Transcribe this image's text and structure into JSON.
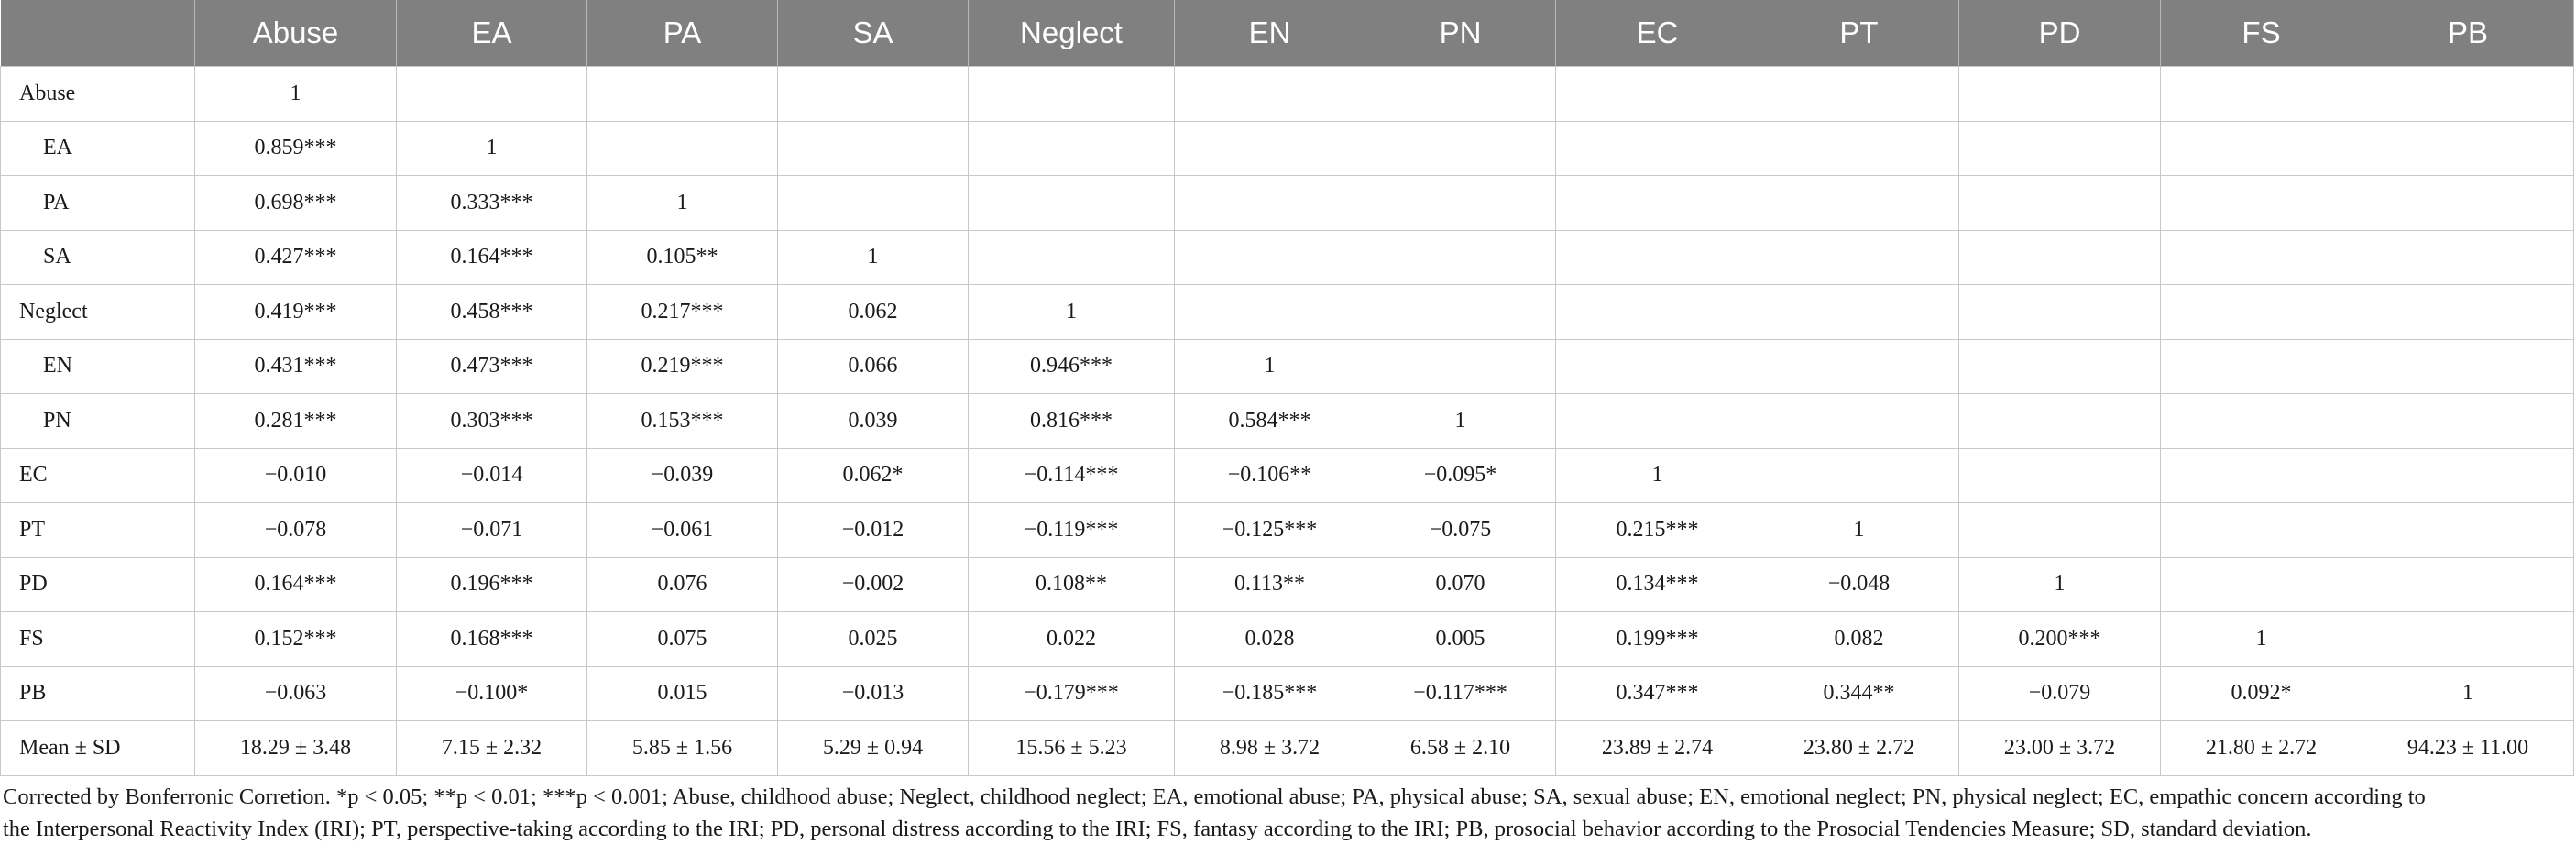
{
  "table": {
    "header": [
      "",
      "Abuse",
      "EA",
      "PA",
      "SA",
      "Neglect",
      "EN",
      "PN",
      "EC",
      "PT",
      "PD",
      "FS",
      "PB"
    ],
    "rows": [
      {
        "label": "Abuse",
        "indent": false,
        "cells": [
          "1",
          "",
          "",
          "",
          "",
          "",
          "",
          "",
          "",
          "",
          "",
          ""
        ]
      },
      {
        "label": "EA",
        "indent": true,
        "cells": [
          "0.859***",
          "1",
          "",
          "",
          "",
          "",
          "",
          "",
          "",
          "",
          "",
          ""
        ]
      },
      {
        "label": "PA",
        "indent": true,
        "cells": [
          "0.698***",
          "0.333***",
          "1",
          "",
          "",
          "",
          "",
          "",
          "",
          "",
          "",
          ""
        ]
      },
      {
        "label": "SA",
        "indent": true,
        "cells": [
          "0.427***",
          "0.164***",
          "0.105**",
          "1",
          "",
          "",
          "",
          "",
          "",
          "",
          "",
          ""
        ]
      },
      {
        "label": "Neglect",
        "indent": false,
        "cells": [
          "0.419***",
          "0.458***",
          "0.217***",
          "0.062",
          "1",
          "",
          "",
          "",
          "",
          "",
          "",
          ""
        ]
      },
      {
        "label": "EN",
        "indent": true,
        "cells": [
          "0.431***",
          "0.473***",
          "0.219***",
          "0.066",
          "0.946***",
          "1",
          "",
          "",
          "",
          "",
          "",
          ""
        ]
      },
      {
        "label": "PN",
        "indent": true,
        "cells": [
          "0.281***",
          "0.303***",
          "0.153***",
          "0.039",
          "0.816***",
          "0.584***",
          "1",
          "",
          "",
          "",
          "",
          ""
        ]
      },
      {
        "label": "EC",
        "indent": false,
        "cells": [
          "−0.010",
          "−0.014",
          "−0.039",
          "0.062*",
          "−0.114***",
          "−0.106**",
          "−0.095*",
          "1",
          "",
          "",
          "",
          ""
        ]
      },
      {
        "label": "PT",
        "indent": false,
        "cells": [
          "−0.078",
          "−0.071",
          "−0.061",
          "−0.012",
          "−0.119***",
          "−0.125***",
          "−0.075",
          "0.215***",
          "1",
          "",
          "",
          ""
        ]
      },
      {
        "label": "PD",
        "indent": false,
        "cells": [
          "0.164***",
          "0.196***",
          "0.076",
          "−0.002",
          "0.108**",
          "0.113**",
          "0.070",
          "0.134***",
          "−0.048",
          "1",
          "",
          ""
        ]
      },
      {
        "label": "FS",
        "indent": false,
        "cells": [
          "0.152***",
          "0.168***",
          "0.075",
          "0.025",
          "0.022",
          "0.028",
          "0.005",
          "0.199***",
          "0.082",
          "0.200***",
          "1",
          ""
        ]
      },
      {
        "label": "PB",
        "indent": false,
        "cells": [
          "−0.063",
          "−0.100*",
          "0.015",
          "−0.013",
          "−0.179***",
          "−0.185***",
          "−0.117***",
          "0.347***",
          "0.344**",
          "−0.079",
          "0.092*",
          "1"
        ]
      },
      {
        "label": "Mean ± SD",
        "indent": false,
        "cells": [
          "18.29 ± 3.48",
          "7.15 ± 2.32",
          "5.85 ± 1.56",
          "5.29 ± 0.94",
          "15.56 ± 5.23",
          "8.98 ± 3.72",
          "6.58 ± 2.10",
          "23.89 ± 2.74",
          "23.80 ± 2.72",
          "23.00 ± 3.72",
          "21.80 ± 2.72",
          "94.23 ± 11.00"
        ]
      }
    ]
  },
  "footnote": {
    "line1": "Corrected by Bonferronic Corretion. *p < 0.05; **p < 0.01; ***p < 0.001; Abuse, childhood abuse; Neglect, childhood neglect; EA, emotional abuse; PA, physical abuse; SA, sexual abuse; EN, emotional neglect; PN, physical neglect; EC, empathic concern according to",
    "line2": "the Interpersonal Reactivity Index (IRI); PT, perspective-taking according to the IRI; PD, personal distress according to the IRI; FS, fantasy according to the IRI; PB, prosocial behavior according to the Prosocial Tendencies Measure; SD, standard deviation."
  }
}
